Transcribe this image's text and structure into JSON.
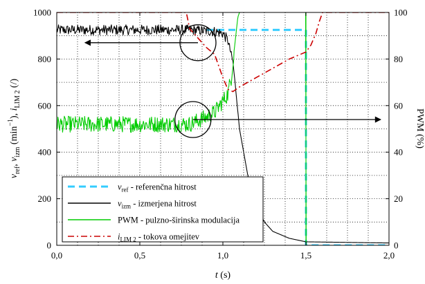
{
  "chart_data": {
    "type": "line",
    "xlabel": "t (s)",
    "ylabel_left": "v_ref, v_izm (min⁻¹), i_LIM 2 (/)",
    "ylabel_right": "PWM (%)",
    "xlim": [
      0,
      2
    ],
    "ylim_left": [
      0,
      1000
    ],
    "ylim_right": [
      0,
      100
    ],
    "x_ticks": [
      0,
      0.5,
      1,
      1.5,
      2
    ],
    "x_tick_labels": [
      "0,0",
      "0,5",
      "1,0",
      "1,5",
      "2,0"
    ],
    "y_left_ticks": [
      0,
      200,
      400,
      600,
      800,
      1000
    ],
    "y_left_tick_labels": [
      "0",
      "200",
      "400",
      "600",
      "800",
      "1000"
    ],
    "y_right_ticks": [
      0,
      20,
      40,
      60,
      80,
      100
    ],
    "y_right_tick_labels": [
      "0",
      "20",
      "40",
      "60",
      "80",
      "100"
    ],
    "grid": true,
    "legend_position": "bottom-left",
    "series": [
      {
        "name": "v_ref - referenčna hitrost",
        "axis": "left",
        "color": "#33ccff",
        "style": "dashed",
        "x": [
          0,
          0.9,
          0.9,
          1.5,
          1.5,
          2.0
        ],
        "y": [
          null,
          null,
          925,
          925,
          0,
          0
        ]
      },
      {
        "name": "v_izm - izmerjena hitrost",
        "axis": "left",
        "color": "#000000",
        "style": "solid-noisy",
        "x": [
          0,
          0.8,
          0.95,
          1.0,
          1.03,
          1.06,
          1.08,
          1.1,
          1.15,
          1.2,
          1.25,
          1.3,
          1.4,
          1.5,
          2.0
        ],
        "y": [
          925,
          925,
          918,
          910,
          880,
          790,
          650,
          500,
          300,
          170,
          100,
          60,
          30,
          15,
          10
        ]
      },
      {
        "name": "PWM - pulzno-širinska modulacija",
        "axis": "right",
        "color": "#00cc00",
        "style": "solid-noisy",
        "x": [
          0,
          0.8,
          0.9,
          0.95,
          1.0,
          1.03,
          1.05,
          1.07,
          1.09,
          1.1,
          1.5,
          1.5,
          2.0
        ],
        "y": [
          52,
          52,
          55,
          57,
          62,
          65,
          72,
          85,
          98,
          100,
          100,
          0,
          0
        ]
      },
      {
        "name": "i_LIM 2 - tokova omejitev",
        "axis": "right",
        "color": "#cc0000",
        "style": "dashdot",
        "x": [
          0,
          0.78,
          0.8,
          0.85,
          0.9,
          0.95,
          1.0,
          1.03,
          1.06,
          1.1,
          1.2,
          1.3,
          1.4,
          1.5,
          1.53,
          1.56,
          1.58,
          1.6,
          2.0
        ],
        "y": [
          100,
          100,
          93,
          89,
          85,
          82,
          72,
          67,
          66,
          68,
          72,
          76,
          80,
          83,
          86,
          91,
          96,
          100,
          100
        ]
      }
    ],
    "annotations": [
      {
        "type": "circle",
        "x": 0.85,
        "y_left": 870
      },
      {
        "type": "circle",
        "x": 0.82,
        "y_left": 540
      },
      {
        "type": "arrow",
        "direction": "left",
        "x_from": 0.85,
        "x_to": 0.17,
        "y_left": 870
      },
      {
        "type": "arrow",
        "direction": "right",
        "x_from": 0.82,
        "x_to": 1.95,
        "y_left": 540
      }
    ]
  }
}
